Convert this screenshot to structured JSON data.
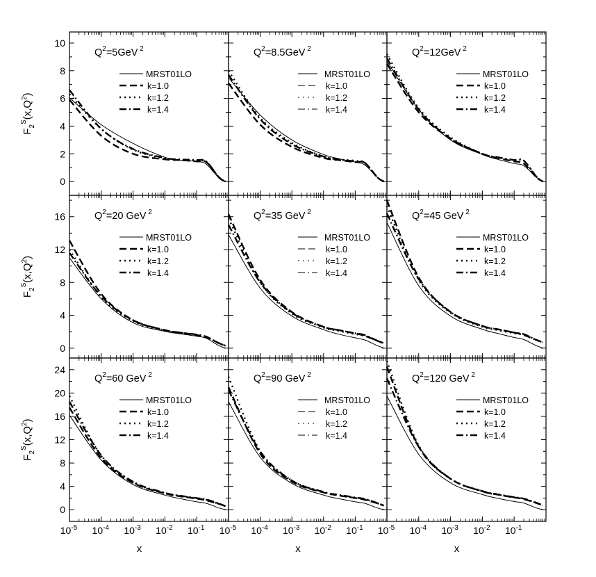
{
  "chart_data": {
    "type": "line",
    "xscale": "log",
    "xlabel": "x",
    "xlim": [
      1e-05,
      1
    ],
    "x_ticks": [
      {
        "base": "10",
        "exp": "-5"
      },
      {
        "base": "10",
        "exp": "-4"
      },
      {
        "base": "10",
        "exp": "-3"
      },
      {
        "base": "10",
        "exp": "-2"
      },
      {
        "base": "10",
        "exp": "-1"
      }
    ],
    "ylabel": {
      "main": "F",
      "sub": "2",
      "sup": "S",
      "arg": "(x,Q",
      "argsup": "2",
      "close": ")"
    },
    "rows": [
      {
        "ylim": [
          -1,
          10.8
        ],
        "yticks": [
          "0",
          "2",
          "4",
          "6",
          "8",
          "10"
        ]
      },
      {
        "ylim": [
          -1.2,
          18.6
        ],
        "yticks": [
          "0",
          "4",
          "8",
          "12",
          "16"
        ]
      },
      {
        "ylim": [
          -2,
          26
        ],
        "yticks": [
          "0",
          "4",
          "8",
          "12",
          "16",
          "20",
          "24"
        ]
      }
    ],
    "legend_labels": [
      "MRST01LO",
      "k=1.0",
      "k=1.2",
      "k=1.4"
    ],
    "panels": [
      {
        "title": "Q",
        "title_sup": "2",
        "title_rest": "=5GeV",
        "title_sup2": "2",
        "series": [
          {
            "name": "MRST01LO",
            "x": [
              1e-05,
              0.0001,
              0.001,
              0.01,
              0.03,
              0.1,
              0.2,
              0.5,
              0.8
            ],
            "y": [
              6.05,
              4.1,
              2.75,
              1.75,
              1.55,
              1.45,
              1.25,
              0.25,
              0.02
            ]
          },
          {
            "name": "k=1.0",
            "x": [
              1e-05,
              0.0001,
              0.001,
              0.01,
              0.03,
              0.1,
              0.2,
              0.5,
              0.8
            ],
            "y": [
              5.9,
              3.3,
              2.0,
              1.6,
              1.55,
              1.45,
              1.4,
              0.3,
              0.0
            ]
          },
          {
            "name": "k=1.2",
            "x": [
              1e-05,
              0.0001,
              0.001,
              0.01,
              0.03,
              0.1,
              0.2,
              0.5,
              0.8
            ],
            "y": [
              6.3,
              3.8,
              2.3,
              1.65,
              1.55,
              1.5,
              1.4,
              0.3,
              0.0
            ]
          },
          {
            "name": "k=1.4",
            "x": [
              1e-05,
              0.0001,
              0.001,
              0.01,
              0.03,
              0.1,
              0.2,
              0.5,
              0.8
            ],
            "y": [
              6.6,
              3.8,
              2.35,
              1.7,
              1.6,
              1.55,
              1.45,
              0.3,
              0.0
            ]
          }
        ]
      },
      {
        "title": "Q",
        "title_sup": "2",
        "title_rest": "=8.5GeV",
        "title_sup2": "2",
        "series": [
          {
            "name": "MRST01LO",
            "x": [
              1e-05,
              0.0001,
              0.001,
              0.01,
              0.03,
              0.1,
              0.2,
              0.5,
              0.8
            ],
            "y": [
              7.5,
              4.8,
              3.0,
              1.95,
              1.65,
              1.4,
              1.2,
              0.3,
              0.02
            ]
          },
          {
            "name": "k=1.0",
            "x": [
              1e-05,
              0.0001,
              0.001,
              0.01,
              0.03,
              0.1,
              0.2,
              0.5,
              0.8
            ],
            "y": [
              7.1,
              4.1,
              2.5,
              1.7,
              1.55,
              1.4,
              1.35,
              0.3,
              0.0
            ]
          },
          {
            "name": "k=1.2",
            "x": [
              1e-05,
              0.0001,
              0.001,
              0.01,
              0.03,
              0.1,
              0.2,
              0.5,
              0.8
            ],
            "y": [
              8.0,
              4.6,
              2.8,
              1.8,
              1.6,
              1.5,
              1.35,
              0.3,
              0.0
            ]
          },
          {
            "name": "k=1.4",
            "x": [
              1e-05,
              0.0001,
              0.001,
              0.01,
              0.03,
              0.1,
              0.2,
              0.5,
              0.8
            ],
            "y": [
              7.7,
              4.5,
              2.7,
              1.8,
              1.6,
              1.45,
              1.35,
              0.3,
              0.0
            ]
          }
        ]
      },
      {
        "title": "Q",
        "title_sup": "2",
        "title_rest": "=12GeV",
        "title_sup2": "2",
        "series": [
          {
            "name": "MRST01LO",
            "x": [
              1e-05,
              0.0001,
              0.001,
              0.01,
              0.03,
              0.1,
              0.2,
              0.5,
              0.8
            ],
            "y": [
              8.7,
              5.2,
              3.0,
              1.95,
              1.6,
              1.3,
              1.15,
              0.3,
              0.02
            ]
          },
          {
            "name": "k=1.0",
            "x": [
              1e-05,
              0.0001,
              0.001,
              0.01,
              0.03,
              0.1,
              0.2,
              0.5,
              0.8
            ],
            "y": [
              8.5,
              5.0,
              3.1,
              2.0,
              1.7,
              1.45,
              1.3,
              0.3,
              0.0
            ]
          },
          {
            "name": "k=1.2",
            "x": [
              1e-05,
              0.0001,
              0.001,
              0.01,
              0.03,
              0.1,
              0.2,
              0.5,
              0.8
            ],
            "y": [
              9.2,
              5.3,
              3.2,
              2.0,
              1.75,
              1.55,
              1.5,
              0.35,
              0.0
            ]
          },
          {
            "name": "k=1.4",
            "x": [
              1e-05,
              0.0001,
              0.001,
              0.01,
              0.03,
              0.1,
              0.2,
              0.5,
              0.8
            ],
            "y": [
              8.9,
              5.2,
              3.1,
              2.0,
              1.75,
              1.55,
              1.5,
              0.35,
              0.0
            ]
          }
        ]
      },
      {
        "title": "Q",
        "title_sup": "2",
        "title_rest": "=20 GeV",
        "title_sup2": "2",
        "series": [
          {
            "name": "MRST01LO",
            "x": [
              1e-05,
              0.0001,
              0.001,
              0.01,
              0.03,
              0.1,
              0.2,
              0.5,
              0.8
            ],
            "y": [
              11.0,
              6.0,
              3.1,
              2.05,
              1.75,
              1.45,
              1.2,
              0.3,
              0.02
            ]
          },
          {
            "name": "k=1.0",
            "x": [
              1e-05,
              0.0001,
              0.001,
              0.01,
              0.03,
              0.1,
              0.2,
              0.5,
              0.8
            ],
            "y": [
              13.1,
              6.6,
              3.4,
              2.2,
              1.9,
              1.6,
              1.35,
              0.6,
              0.3
            ]
          },
          {
            "name": "k=1.2",
            "x": [
              1e-05,
              0.0001,
              0.001,
              0.01,
              0.03,
              0.1,
              0.2,
              0.5,
              0.8
            ],
            "y": [
              12.0,
              6.2,
              3.3,
              2.15,
              1.85,
              1.55,
              1.35,
              0.6,
              0.3
            ]
          },
          {
            "name": "k=1.4",
            "x": [
              1e-05,
              0.0001,
              0.001,
              0.01,
              0.03,
              0.1,
              0.2,
              0.5,
              0.8
            ],
            "y": [
              11.6,
              6.3,
              3.4,
              2.2,
              1.9,
              1.65,
              1.4,
              0.6,
              0.3
            ]
          }
        ]
      },
      {
        "title": "Q",
        "title_sup": "2",
        "title_rest": "=35 GeV",
        "title_sup2": "2",
        "series": [
          {
            "name": "MRST01LO",
            "x": [
              1e-05,
              0.0001,
              0.001,
              0.01,
              0.03,
              0.1,
              0.2,
              0.5,
              0.8
            ],
            "y": [
              13.8,
              7.3,
              3.9,
              2.25,
              1.7,
              1.25,
              1.0,
              0.3,
              0.02
            ]
          },
          {
            "name": "k=1.0",
            "x": [
              1e-05,
              0.0001,
              0.001,
              0.01,
              0.03,
              0.1,
              0.2,
              0.5,
              0.8
            ],
            "y": [
              16.3,
              8.3,
              4.4,
              2.6,
              2.2,
              1.8,
              1.5,
              0.9,
              0.6
            ]
          },
          {
            "name": "k=1.2",
            "x": [
              1e-05,
              0.0001,
              0.001,
              0.01,
              0.03,
              0.1,
              0.2,
              0.5,
              0.8
            ],
            "y": [
              15.8,
              8.0,
              4.2,
              2.5,
              2.1,
              1.7,
              1.5,
              0.9,
              0.6
            ]
          },
          {
            "name": "k=1.4",
            "x": [
              1e-05,
              0.0001,
              0.001,
              0.01,
              0.03,
              0.1,
              0.2,
              0.5,
              0.8
            ],
            "y": [
              15.0,
              8.0,
              4.3,
              2.6,
              2.2,
              1.8,
              1.6,
              0.9,
              0.6
            ]
          }
        ]
      },
      {
        "title": "Q",
        "title_sup": "2",
        "title_rest": "=45 GeV",
        "title_sup2": "2",
        "series": [
          {
            "name": "MRST01LO",
            "x": [
              1e-05,
              0.0001,
              0.001,
              0.01,
              0.03,
              0.1,
              0.2,
              0.5,
              0.8
            ],
            "y": [
              15.3,
              7.6,
              3.9,
              2.3,
              1.8,
              1.3,
              1.05,
              0.3,
              0.02
            ]
          },
          {
            "name": "k=1.0",
            "x": [
              1e-05,
              0.0001,
              0.001,
              0.01,
              0.03,
              0.1,
              0.2,
              0.5,
              0.8
            ],
            "y": [
              18.0,
              8.6,
              4.4,
              2.7,
              2.3,
              1.9,
              1.6,
              1.0,
              0.7
            ]
          },
          {
            "name": "k=1.2",
            "x": [
              1e-05,
              0.0001,
              0.001,
              0.01,
              0.03,
              0.1,
              0.2,
              0.5,
              0.8
            ],
            "y": [
              17.3,
              8.3,
              4.3,
              2.6,
              2.2,
              1.8,
              1.6,
              1.0,
              0.7
            ]
          },
          {
            "name": "k=1.4",
            "x": [
              1e-05,
              0.0001,
              0.001,
              0.01,
              0.03,
              0.1,
              0.2,
              0.5,
              0.8
            ],
            "y": [
              16.4,
              8.4,
              4.4,
              2.7,
              2.3,
              1.9,
              1.7,
              1.0,
              0.7
            ]
          }
        ]
      },
      {
        "title": "Q",
        "title_sup": "2",
        "title_rest": "=60 GeV",
        "title_sup2": "2",
        "series": [
          {
            "name": "MRST01LO",
            "x": [
              1e-05,
              0.0001,
              0.001,
              0.01,
              0.03,
              0.1,
              0.2,
              0.5,
              0.8
            ],
            "y": [
              16.2,
              8.5,
              4.3,
              2.5,
              1.9,
              1.35,
              1.1,
              0.3,
              0.02
            ]
          },
          {
            "name": "k=1.0",
            "x": [
              1e-05,
              0.0001,
              0.001,
              0.01,
              0.03,
              0.1,
              0.2,
              0.5,
              0.8
            ],
            "y": [
              17.5,
              8.8,
              4.6,
              2.8,
              2.3,
              1.9,
              1.6,
              1.0,
              0.6
            ]
          },
          {
            "name": "k=1.2",
            "x": [
              1e-05,
              0.0001,
              0.001,
              0.01,
              0.03,
              0.1,
              0.2,
              0.5,
              0.8
            ],
            "y": [
              19.5,
              9.2,
              4.7,
              2.85,
              2.35,
              1.95,
              1.7,
              1.0,
              0.6
            ]
          },
          {
            "name": "k=1.4",
            "x": [
              1e-05,
              0.0001,
              0.001,
              0.01,
              0.03,
              0.1,
              0.2,
              0.5,
              0.8
            ],
            "y": [
              18.5,
              9.3,
              4.8,
              2.9,
              2.4,
              2.0,
              1.75,
              1.05,
              0.6
            ]
          }
        ]
      },
      {
        "title": "Q",
        "title_sup": "2",
        "title_rest": "=90 GeV",
        "title_sup2": "2",
        "series": [
          {
            "name": "MRST01LO",
            "x": [
              1e-05,
              0.0001,
              0.001,
              0.01,
              0.03,
              0.1,
              0.2,
              0.5,
              0.8
            ],
            "y": [
              18.5,
              9.0,
              4.5,
              2.5,
              1.9,
              1.35,
              1.1,
              0.3,
              0.02
            ]
          },
          {
            "name": "k=1.0",
            "x": [
              1e-05,
              0.0001,
              0.001,
              0.01,
              0.03,
              0.1,
              0.2,
              0.5,
              0.8
            ],
            "y": [
              21.0,
              9.6,
              4.8,
              2.95,
              2.45,
              2.0,
              1.7,
              1.1,
              0.7
            ]
          },
          {
            "name": "k=1.2",
            "x": [
              1e-05,
              0.0001,
              0.001,
              0.01,
              0.03,
              0.1,
              0.2,
              0.5,
              0.8
            ],
            "y": [
              22.8,
              10.0,
              5.0,
              3.0,
              2.5,
              2.05,
              1.8,
              1.1,
              0.7
            ]
          },
          {
            "name": "k=1.4",
            "x": [
              1e-05,
              0.0001,
              0.001,
              0.01,
              0.03,
              0.1,
              0.2,
              0.5,
              0.8
            ],
            "y": [
              20.5,
              10.0,
              5.0,
              3.05,
              2.55,
              2.1,
              1.85,
              1.15,
              0.7
            ]
          }
        ]
      },
      {
        "title": "Q",
        "title_sup": "2",
        "title_rest": "=120 GeV",
        "title_sup2": "2",
        "series": [
          {
            "name": "MRST01LO",
            "x": [
              1e-05,
              0.0001,
              0.001,
              0.01,
              0.03,
              0.1,
              0.2,
              0.5,
              0.8
            ],
            "y": [
              19.5,
              9.5,
              4.6,
              2.6,
              1.95,
              1.4,
              1.15,
              0.3,
              0.02
            ]
          },
          {
            "name": "k=1.0",
            "x": [
              1e-05,
              0.0001,
              0.001,
              0.01,
              0.03,
              0.1,
              0.2,
              0.5,
              0.8
            ],
            "y": [
              24.5,
              10.8,
              5.3,
              3.15,
              2.6,
              2.1,
              1.8,
              1.15,
              0.7
            ]
          },
          {
            "name": "k=1.2",
            "x": [
              1e-05,
              0.0001,
              0.001,
              0.01,
              0.03,
              0.1,
              0.2,
              0.5,
              0.8
            ],
            "y": [
              25.5,
              11.0,
              5.3,
              3.15,
              2.6,
              2.1,
              1.85,
              1.15,
              0.7
            ]
          },
          {
            "name": "k=1.4",
            "x": [
              1e-05,
              0.0001,
              0.001,
              0.01,
              0.03,
              0.1,
              0.2,
              0.5,
              0.8
            ],
            "y": [
              22.5,
              10.8,
              5.3,
              3.2,
              2.65,
              2.15,
              1.9,
              1.2,
              0.7
            ]
          }
        ]
      }
    ]
  }
}
